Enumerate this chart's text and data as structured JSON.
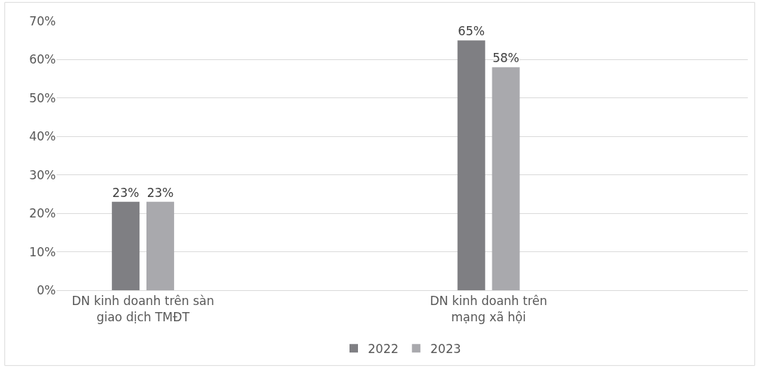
{
  "chart_data": {
    "type": "bar",
    "categories": [
      "DN kinh doanh trên sàn giao dịch TMĐT",
      "DN kinh doanh trên mạng xã hội"
    ],
    "series": [
      {
        "name": "2022",
        "color": "#7f7f83",
        "values": [
          23,
          65
        ],
        "value_labels": [
          "23%",
          "65%"
        ]
      },
      {
        "name": "2023",
        "color": "#a9a9ad",
        "values": [
          23,
          58
        ],
        "value_labels": [
          "23%",
          "58%"
        ]
      }
    ],
    "ylim": [
      0,
      70
    ],
    "yticks": [
      {
        "value": 0,
        "label": "0%"
      },
      {
        "value": 10,
        "label": "10%"
      },
      {
        "value": 20,
        "label": "20%"
      },
      {
        "value": 30,
        "label": "30%"
      },
      {
        "value": 40,
        "label": "40%"
      },
      {
        "value": 50,
        "label": "50%"
      },
      {
        "value": 60,
        "label": "60%"
      },
      {
        "value": 70,
        "label": "70%"
      }
    ],
    "grid": "y",
    "legend": "bottom"
  }
}
